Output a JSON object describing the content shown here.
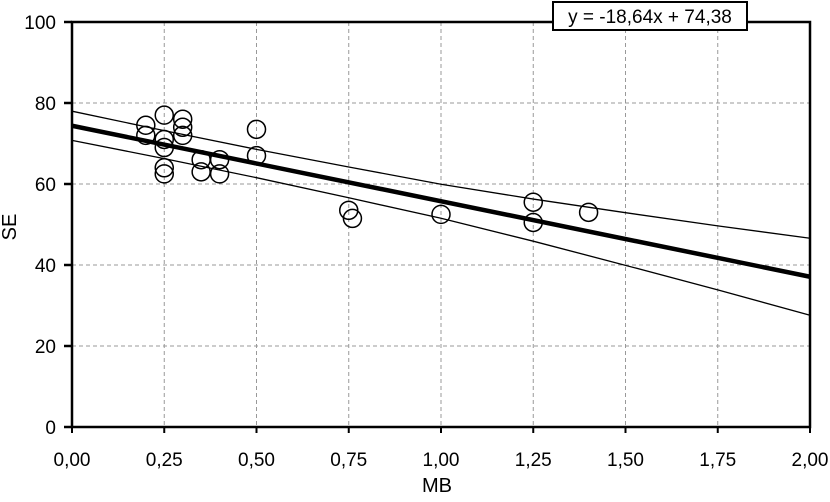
{
  "figure": {
    "background_color": "#ffffff",
    "line_color": "#000000",
    "grid_color": "#999999"
  },
  "chart_data": {
    "type": "scatter",
    "title": "",
    "xlabel": "MB",
    "ylabel": "SE",
    "xlim": [
      0,
      2
    ],
    "ylim": [
      0,
      100
    ],
    "grid": true,
    "x_ticks": [
      0,
      0.25,
      0.5,
      0.75,
      1.0,
      1.25,
      1.5,
      1.75,
      2.0
    ],
    "x_tick_labels": [
      "0,00",
      "0,25",
      "0,50",
      "0,75",
      "1,00",
      "1,25",
      "1,50",
      "1,75",
      "2,00"
    ],
    "y_ticks": [
      0,
      20,
      40,
      60,
      80,
      100
    ],
    "y_tick_labels": [
      "0",
      "20",
      "40",
      "60",
      "80",
      "100"
    ],
    "equation_label": "y = -18,64x + 74,38",
    "regression": {
      "slope": -18.64,
      "intercept": 74.38
    },
    "points": [
      [
        0.2,
        74.5
      ],
      [
        0.2,
        72.0
      ],
      [
        0.25,
        77.0
      ],
      [
        0.25,
        71.0
      ],
      [
        0.25,
        69.0
      ],
      [
        0.25,
        64.0
      ],
      [
        0.25,
        62.5
      ],
      [
        0.3,
        76.0
      ],
      [
        0.3,
        74.0
      ],
      [
        0.3,
        72.0
      ],
      [
        0.35,
        66.0
      ],
      [
        0.35,
        63.0
      ],
      [
        0.4,
        66.0
      ],
      [
        0.4,
        62.5
      ],
      [
        0.5,
        73.5
      ],
      [
        0.5,
        67.0
      ],
      [
        0.75,
        53.5
      ],
      [
        0.76,
        51.5
      ],
      [
        1.0,
        52.5
      ],
      [
        1.25,
        55.5
      ],
      [
        1.25,
        50.5
      ],
      [
        1.4,
        53.0
      ]
    ],
    "confidence_upper": {
      "x": [
        0,
        0.25,
        0.5,
        0.75,
        1.0,
        1.25,
        1.5,
        1.75,
        2.0
      ],
      "y": [
        77.98,
        73.17,
        68.56,
        64.2,
        59.94,
        56.28,
        52.92,
        49.66,
        46.6
      ]
    },
    "confidence_lower": {
      "x": [
        0,
        0.25,
        0.5,
        0.75,
        1.0,
        1.25,
        1.5,
        1.75,
        2.0
      ],
      "y": [
        70.78,
        66.27,
        61.56,
        56.6,
        51.54,
        45.88,
        39.92,
        33.86,
        27.6
      ]
    }
  }
}
